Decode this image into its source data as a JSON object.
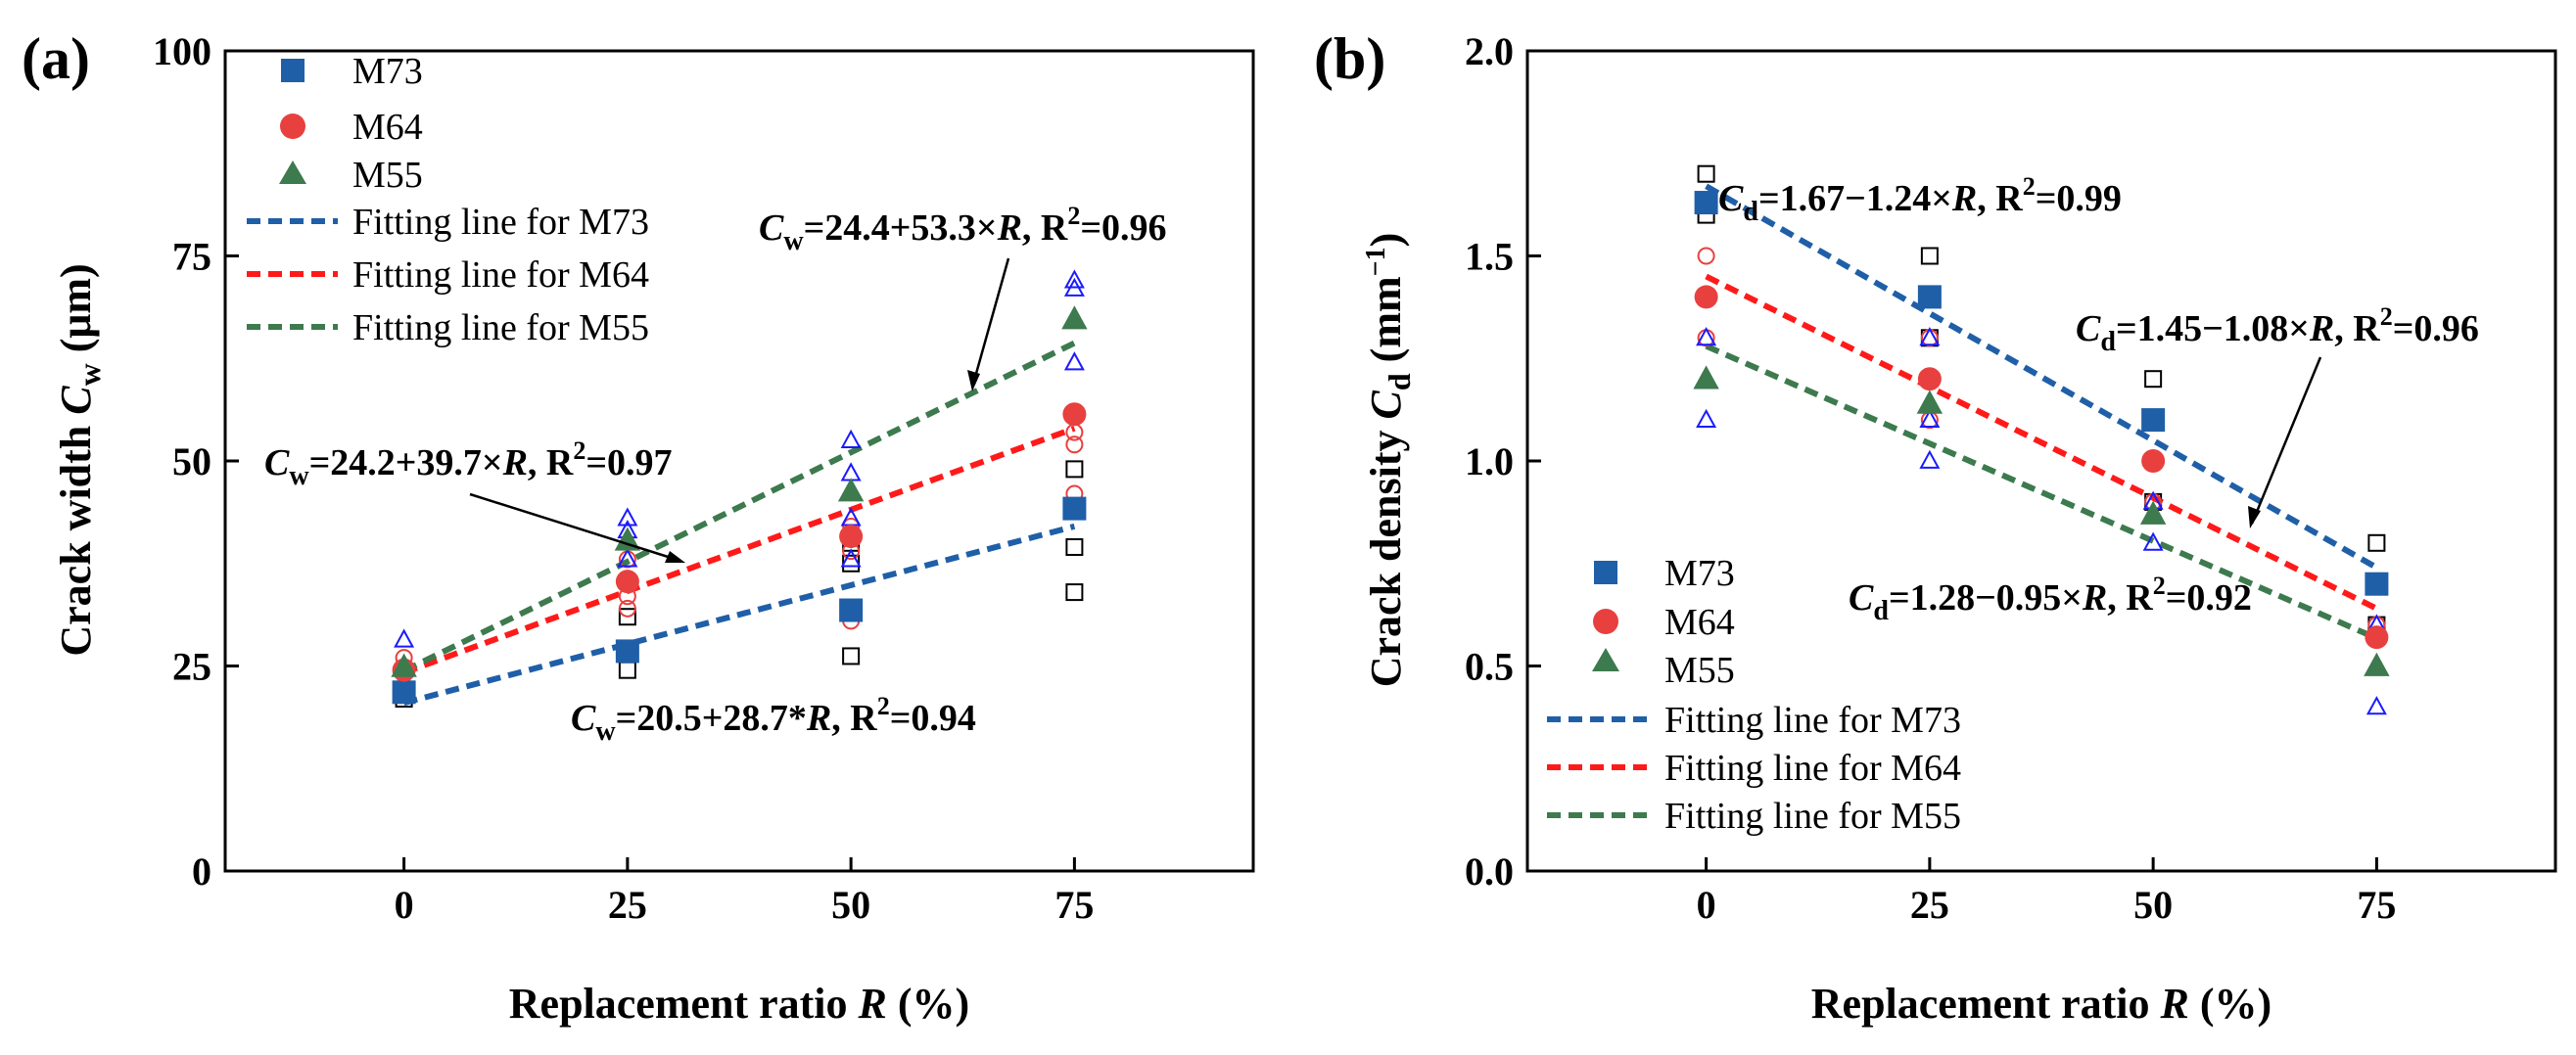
{
  "colors": {
    "M73": "#1f5fa8",
    "M64": "#e8403f",
    "M55": "#3d7a4e",
    "M73_fit": "#1f5fa8",
    "M64_fit": "#ff1a1a",
    "M55_fit": "#3d7a4e",
    "raw_M73": "#000000",
    "raw_M64": "#e8403f",
    "raw_M55": "#1a1aff"
  },
  "chart_data": [
    {
      "type": "scatter",
      "panel_label": "(a)",
      "xlabel_text": "Replacement ratio ",
      "xlabel_var": "R",
      "xlabel_unit": " (%)",
      "ylabel_text": "Crack width ",
      "ylabel_var": "C",
      "ylabel_sub": "w",
      "ylabel_unit": " (μm)",
      "xlim": [
        -20,
        95
      ],
      "ylim": [
        0,
        100
      ],
      "x_ticks": [
        0,
        25,
        50,
        75
      ],
      "x_tick_labels": [
        "0",
        "25",
        "50",
        "75"
      ],
      "y_ticks": [
        0,
        25,
        50,
        75,
        100
      ],
      "y_tick_labels": [
        "0",
        "25",
        "50",
        "75",
        "100"
      ],
      "grid": false,
      "legend_position": "top-left",
      "series": [
        {
          "name": "M73",
          "marker": "square",
          "x": [
            0,
            25,
            50,
            75
          ],
          "y": [
            21.8,
            26.8,
            31.8,
            44.2
          ],
          "raw": [
            [
              0,
              21.5
            ],
            [
              0,
              21.0
            ],
            [
              25,
              24.5
            ],
            [
              25,
              31.0
            ],
            [
              25,
              27.0
            ],
            [
              50,
              26.2
            ],
            [
              50,
              37.5
            ],
            [
              50,
              40.0
            ],
            [
              75,
              34.0
            ],
            [
              75,
              39.5
            ],
            [
              75,
              49.0
            ]
          ]
        },
        {
          "name": "M64",
          "marker": "circle",
          "x": [
            0,
            25,
            50,
            75
          ],
          "y": [
            24.5,
            35.3,
            40.8,
            55.7
          ],
          "raw": [
            [
              0,
              24.0
            ],
            [
              0,
              26.0
            ],
            [
              25,
              32.0
            ],
            [
              25,
              33.5
            ],
            [
              25,
              38.0
            ],
            [
              50,
              30.5
            ],
            [
              50,
              39.0
            ],
            [
              50,
              42.0
            ],
            [
              75,
              46.0
            ],
            [
              75,
              52.0
            ],
            [
              75,
              53.5
            ]
          ]
        },
        {
          "name": "M55",
          "marker": "triangle",
          "x": [
            0,
            25,
            50,
            75
          ],
          "y": [
            24.9,
            40.3,
            46.3,
            67.3
          ],
          "raw": [
            [
              0,
              28.2
            ],
            [
              0,
              22.0
            ],
            [
              25,
              43.0
            ],
            [
              25,
              38.0
            ],
            [
              25,
              41.5
            ],
            [
              50,
              52.5
            ],
            [
              50,
              48.5
            ],
            [
              50,
              43.0
            ],
            [
              50,
              38.0
            ],
            [
              75,
              62.0
            ],
            [
              75,
              71.0
            ],
            [
              75,
              72.0
            ]
          ]
        }
      ],
      "fits": [
        {
          "name": "Fitting line for M73",
          "series": "M73",
          "intercept": 20.5,
          "slope": 0.287
        },
        {
          "name": "Fitting line for M64",
          "series": "M64",
          "intercept": 24.2,
          "slope": 0.397
        },
        {
          "name": "Fitting line for M55",
          "series": "M55",
          "intercept": 24.4,
          "slope": 0.533
        }
      ],
      "annotations": [
        {
          "var": "C",
          "sub": "w",
          "text": "=24.4+53.3×",
          "r": "R",
          "tail": ", R",
          "sup": "2",
          "end": "=0.96"
        },
        {
          "var": "C",
          "sub": "w",
          "text": "=24.2+39.7×",
          "r": "R",
          "tail": ", R",
          "sup": "2",
          "end": "=0.97"
        },
        {
          "var": "C",
          "sub": "w",
          "text": "=20.5+28.7*",
          "r": "R",
          "tail": ", R",
          "sup": "2",
          "end": "=0.94"
        }
      ]
    },
    {
      "type": "scatter",
      "panel_label": "(b)",
      "xlabel_text": "Replacement ratio ",
      "xlabel_var": "R",
      "xlabel_unit": " (%)",
      "ylabel_text": "Crack density ",
      "ylabel_var": "C",
      "ylabel_sub": "d",
      "ylabel_unit_pre": " (mm",
      "ylabel_unit_sup": "−1",
      "ylabel_unit_post": ")",
      "xlim": [
        -20,
        95
      ],
      "ylim": [
        0,
        2.0
      ],
      "x_ticks": [
        0,
        25,
        50,
        75
      ],
      "x_tick_labels": [
        "0",
        "25",
        "50",
        "75"
      ],
      "y_ticks": [
        0,
        0.5,
        1.0,
        1.5,
        2.0
      ],
      "y_tick_labels": [
        "0.0",
        "0.5",
        "1.0",
        "1.5",
        "2.0"
      ],
      "grid": false,
      "legend_position": "bottom-left",
      "series": [
        {
          "name": "M73",
          "marker": "square",
          "x": [
            0,
            25,
            50,
            75
          ],
          "y": [
            1.63,
            1.4,
            1.1,
            0.7
          ],
          "raw": [
            [
              0,
              1.7
            ],
            [
              0,
              1.6
            ],
            [
              25,
              1.5
            ],
            [
              25,
              1.3
            ],
            [
              50,
              1.2
            ],
            [
              50,
              0.9
            ],
            [
              75,
              0.8
            ],
            [
              75,
              0.6
            ]
          ]
        },
        {
          "name": "M64",
          "marker": "circle",
          "x": [
            0,
            25,
            50,
            75
          ],
          "y": [
            1.4,
            1.2,
            1.0,
            0.57
          ],
          "raw": [
            [
              0,
              1.5
            ],
            [
              0,
              1.3
            ],
            [
              25,
              1.3
            ],
            [
              25,
              1.1
            ],
            [
              50,
              0.9
            ],
            [
              75,
              0.6
            ]
          ]
        },
        {
          "name": "M55",
          "marker": "triangle",
          "x": [
            0,
            25,
            50,
            75
          ],
          "y": [
            1.2,
            1.14,
            0.87,
            0.5
          ],
          "raw": [
            [
              0,
              1.3
            ],
            [
              0,
              1.1
            ],
            [
              25,
              1.3
            ],
            [
              25,
              1.1
            ],
            [
              25,
              1.0
            ],
            [
              50,
              0.9
            ],
            [
              50,
              0.8
            ],
            [
              75,
              0.6
            ],
            [
              75,
              0.4
            ]
          ]
        }
      ],
      "fits": [
        {
          "name": "Fitting line for M73",
          "series": "M73",
          "intercept": 1.67,
          "slope": -0.0124
        },
        {
          "name": "Fitting line for M64",
          "series": "M64",
          "intercept": 1.45,
          "slope": -0.0108
        },
        {
          "name": "Fitting line for M55",
          "series": "M55",
          "intercept": 1.28,
          "slope": -0.0095
        }
      ],
      "annotations": [
        {
          "var": "C",
          "sub": "d",
          "text": "=1.67−1.24×",
          "r": "R",
          "tail": ", R",
          "sup": "2",
          "end": "=0.99"
        },
        {
          "var": "C",
          "sub": "d",
          "text": "=1.45−1.08×",
          "r": "R",
          "tail": ", R",
          "sup": "2",
          "end": "=0.96"
        },
        {
          "var": "C",
          "sub": "d",
          "text": "=1.28−0.95×",
          "r": "R",
          "tail": ", R",
          "sup": "2",
          "end": "=0.92"
        }
      ]
    }
  ]
}
